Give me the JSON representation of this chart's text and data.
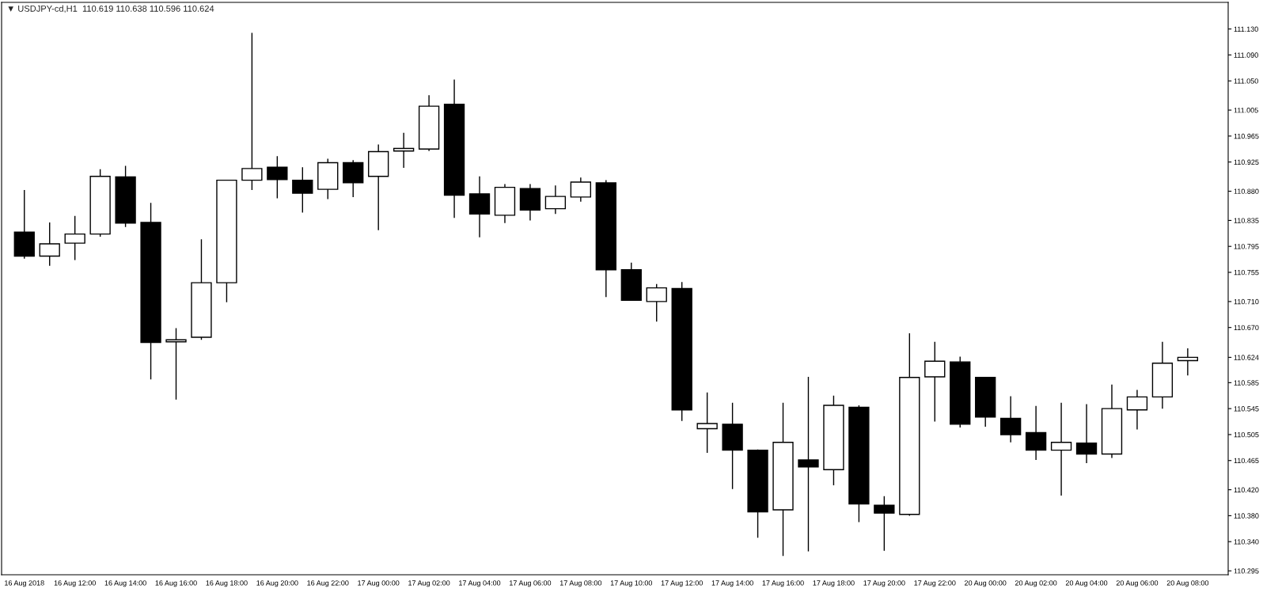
{
  "chart_data": {
    "type": "candlestick",
    "title": "▼ USDJPY-cd,H1  110.619 110.638 110.596 110.624",
    "categories": [
      "16 Aug 2018",
      null,
      "16 Aug 12:00",
      null,
      "16 Aug 14:00",
      null,
      "16 Aug 16:00",
      null,
      "16 Aug 18:00",
      null,
      "16 Aug 20:00",
      null,
      "16 Aug 22:00",
      null,
      "17 Aug 00:00",
      null,
      "17 Aug 02:00",
      null,
      "17 Aug 04:00",
      null,
      "17 Aug 06:00",
      null,
      "17 Aug 08:00",
      null,
      "17 Aug 10:00",
      null,
      "17 Aug 12:00",
      null,
      "17 Aug 14:00",
      null,
      "17 Aug 16:00",
      null,
      "17 Aug 18:00",
      null,
      "17 Aug 20:00",
      null,
      "17 Aug 22:00",
      null,
      "20 Aug 00:00",
      null,
      "20 Aug 02:00",
      null,
      "20 Aug 04:00",
      null,
      "20 Aug 06:00",
      null,
      "20 Aug 08:00"
    ],
    "series": [
      {
        "color": "#000000",
        "ohlc": [
          [
            110.817,
            110.882,
            110.776,
            110.78
          ],
          [
            110.78,
            110.832,
            110.765,
            110.799
          ],
          [
            110.8,
            110.842,
            110.774,
            110.814
          ],
          [
            110.814,
            110.914,
            110.81,
            110.903
          ],
          [
            110.902,
            110.919,
            110.825,
            110.831
          ],
          [
            110.832,
            110.862,
            110.59,
            110.647
          ],
          [
            110.648,
            110.669,
            110.559,
            110.651
          ],
          [
            110.655,
            110.806,
            110.651,
            110.739
          ],
          [
            110.739,
            110.897,
            110.709,
            110.897
          ],
          [
            110.897,
            111.124,
            110.882,
            110.915
          ],
          [
            110.917,
            110.934,
            110.869,
            110.898
          ],
          [
            110.897,
            110.917,
            110.847,
            110.877
          ],
          [
            110.883,
            110.93,
            110.868,
            110.924
          ],
          [
            110.924,
            110.928,
            110.871,
            110.893
          ],
          [
            110.903,
            110.952,
            110.82,
            110.941
          ],
          [
            110.942,
            110.97,
            110.916,
            110.946
          ],
          [
            110.945,
            111.028,
            110.942,
            111.011
          ],
          [
            111.014,
            111.052,
            110.839,
            110.874
          ],
          [
            110.876,
            110.903,
            110.809,
            110.845
          ],
          [
            110.843,
            110.891,
            110.831,
            110.886
          ],
          [
            110.884,
            110.891,
            110.835,
            110.851
          ],
          [
            110.853,
            110.889,
            110.845,
            110.872
          ],
          [
            110.871,
            110.901,
            110.864,
            110.894
          ],
          [
            110.893,
            110.897,
            110.717,
            110.759
          ],
          [
            110.759,
            110.77,
            110.711,
            110.712
          ],
          [
            110.71,
            110.737,
            110.679,
            110.731
          ],
          [
            110.73,
            110.74,
            110.526,
            110.543
          ],
          [
            110.514,
            110.57,
            110.477,
            110.522
          ],
          [
            110.521,
            110.554,
            110.421,
            110.481
          ],
          [
            110.481,
            110.482,
            110.346,
            110.386
          ],
          [
            110.389,
            110.554,
            110.318,
            110.493
          ],
          [
            110.466,
            110.594,
            110.325,
            110.455
          ],
          [
            110.451,
            110.565,
            110.427,
            110.55
          ],
          [
            110.547,
            110.55,
            110.37,
            110.398
          ],
          [
            110.396,
            110.41,
            110.326,
            110.384
          ],
          [
            110.382,
            110.661,
            110.38,
            110.593
          ],
          [
            110.594,
            110.648,
            110.525,
            110.618
          ],
          [
            110.617,
            110.625,
            110.516,
            110.521
          ],
          [
            110.593,
            110.593,
            110.517,
            110.532
          ],
          [
            110.53,
            110.564,
            110.493,
            110.505
          ],
          [
            110.508,
            110.549,
            110.466,
            110.481
          ],
          [
            110.481,
            110.554,
            110.411,
            110.493
          ],
          [
            110.492,
            110.552,
            110.461,
            110.475
          ],
          [
            110.475,
            110.582,
            110.469,
            110.545
          ],
          [
            110.543,
            110.574,
            110.513,
            110.563
          ],
          [
            110.563,
            110.648,
            110.545,
            110.615
          ],
          [
            110.619,
            110.638,
            110.596,
            110.624
          ]
        ],
        "colors": [
          "#000000",
          "#ffffff",
          "#ffffff",
          "#ffffff",
          "#000000",
          "#000000",
          "#ffffff",
          "#ffffff",
          "#ffffff",
          "#ffffff",
          "#000000",
          "#000000",
          "#ffffff",
          "#000000",
          "#ffffff",
          "#ffffff",
          "#ffffff",
          "#000000",
          "#000000",
          "#ffffff",
          "#000000",
          "#ffffff",
          "#ffffff",
          "#000000",
          "#000000",
          "#ffffff",
          "#000000",
          "#ffffff",
          "#000000",
          "#000000",
          "#ffffff",
          "#000000",
          "#ffffff",
          "#000000",
          "#000000",
          "#ffffff",
          "#ffffff",
          "#000000",
          "#000000",
          "#000000",
          "#000000",
          "#ffffff",
          "#000000",
          "#ffffff",
          "#ffffff",
          "#ffffff",
          "#ffffff"
        ]
      }
    ],
    "ylim": [
      110.289,
      111.171
    ],
    "yticks": [
      110.295,
      {
        "value": 110.34,
        "label": "110.340"
      },
      {
        "value": 110.38,
        "label": "110.380"
      },
      {
        "value": 110.42,
        "label": "110.420"
      },
      110.465,
      110.505,
      110.545,
      110.585,
      110.624,
      {
        "value": 110.67,
        "label": "110.670"
      },
      {
        "value": 110.71,
        "label": "110.710"
      },
      110.755,
      110.795,
      110.835,
      {
        "value": 110.88,
        "label": "110.880"
      },
      110.925,
      110.965,
      111.005,
      {
        "value": 111.05,
        "label": "111.050"
      },
      {
        "value": 111.09,
        "label": "111.090"
      },
      {
        "value": 111.13,
        "label": "111.130"
      }
    ],
    "grid": false,
    "legend": false
  }
}
